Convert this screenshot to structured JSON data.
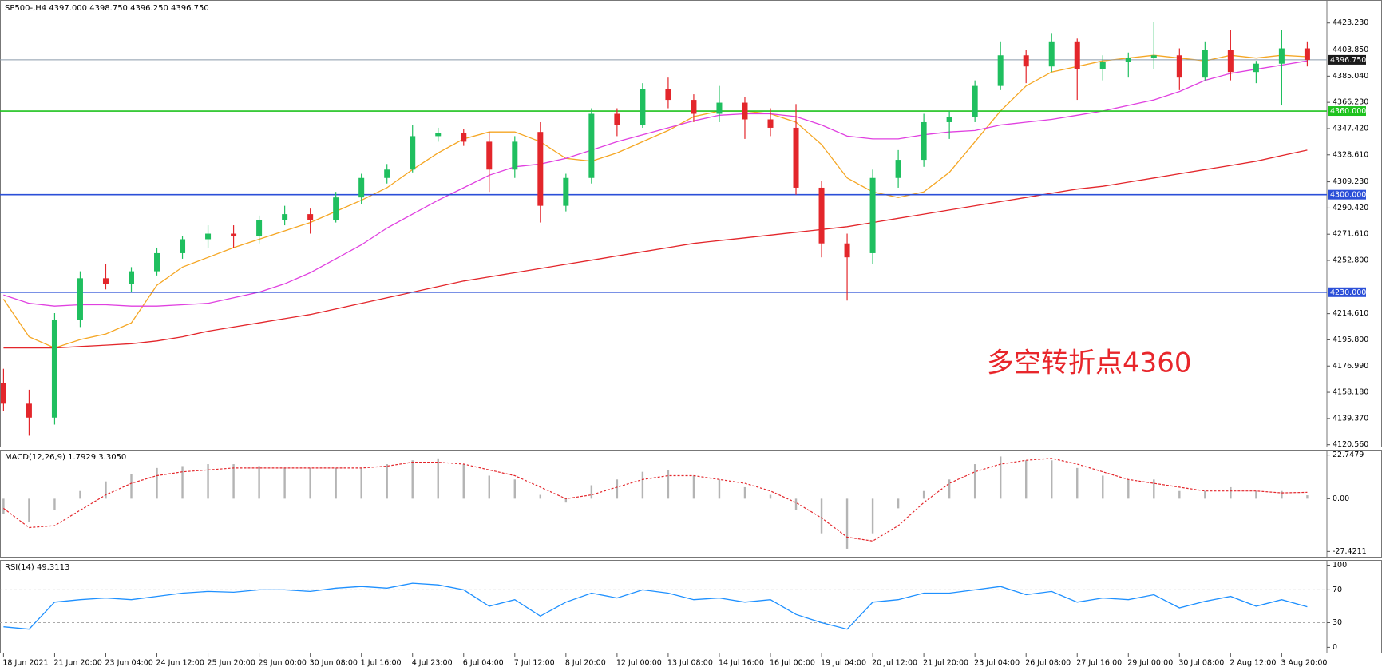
{
  "chart_data": [
    {
      "type": "candlestick",
      "title": "SP500-,H4  4397.000 4398.750 4396.250 4396.750",
      "categories": [
        "18 Jun 2021",
        null,
        "21 Jun 20:00",
        null,
        "23 Jun 04:00",
        null,
        "24 Jun 12:00",
        null,
        "25 Jun 20:00",
        null,
        "29 Jun 00:00",
        null,
        "30 Jun 08:00",
        null,
        "1 Jul 16:00",
        null,
        "4 Jul 23:00",
        null,
        "6 Jul 04:00",
        null,
        "7 Jul 12:00",
        null,
        "8 Jul 20:00",
        null,
        "12 Jul 00:00",
        null,
        "13 Jul 08:00",
        null,
        "14 Jul 16:00",
        null,
        "16 Jul 00:00",
        null,
        "19 Jul 04:00",
        null,
        "20 Jul 12:00",
        null,
        "21 Jul 20:00",
        null,
        "23 Jul 04:00",
        null,
        "26 Jul 08:00",
        null,
        "27 Jul 16:00",
        null,
        "29 Jul 00:00",
        null,
        "30 Jul 08:00",
        null,
        "2 Aug 12:00",
        null,
        "3 Aug 20:00",
        null
      ],
      "open": [
        4165,
        4150,
        4140,
        4210,
        4240,
        4236,
        4245,
        4258,
        4268,
        4272,
        4270,
        4282,
        4286,
        4282,
        4298,
        4312,
        4318,
        4342,
        4344,
        4338,
        4318,
        4345,
        4292,
        4312,
        4358,
        4350,
        4376,
        4368,
        4358,
        4366,
        4354,
        4348,
        4305,
        4265,
        4258,
        4312,
        4325,
        4352,
        4356,
        4378,
        4400,
        4392,
        4410,
        4390,
        4395,
        4398,
        4400,
        4384,
        4404,
        4388,
        4394,
        4405
      ],
      "high": [
        4175,
        4160,
        4215,
        4245,
        4250,
        4248,
        4262,
        4270,
        4278,
        4278,
        4285,
        4292,
        4290,
        4302,
        4315,
        4322,
        4350,
        4348,
        4347,
        4345,
        4342,
        4352,
        4315,
        4362,
        4362,
        4380,
        4384,
        4372,
        4378,
        4370,
        4362,
        4365,
        4310,
        4272,
        4318,
        4332,
        4358,
        4360,
        4382,
        4410,
        4404,
        4416,
        4412,
        4400,
        4402,
        4424,
        4405,
        4410,
        4418,
        4396,
        4418,
        4410
      ],
      "low": [
        4145,
        4127,
        4135,
        4205,
        4232,
        4230,
        4242,
        4254,
        4262,
        4262,
        4265,
        4278,
        4272,
        4280,
        4293,
        4308,
        4316,
        4338,
        4335,
        4302,
        4312,
        4280,
        4288,
        4308,
        4342,
        4348,
        4362,
        4352,
        4352,
        4340,
        4342,
        4300,
        4255,
        4224,
        4250,
        4305,
        4320,
        4340,
        4352,
        4375,
        4380,
        4388,
        4368,
        4382,
        4384,
        4390,
        4375,
        4382,
        4382,
        4380,
        4364,
        4392
      ],
      "close": [
        4150,
        4140,
        4210,
        4240,
        4236,
        4245,
        4258,
        4268,
        4272,
        4270,
        4282,
        4286,
        4282,
        4298,
        4312,
        4318,
        4342,
        4344,
        4338,
        4318,
        4338,
        4292,
        4312,
        4358,
        4350,
        4376,
        4368,
        4358,
        4366,
        4354,
        4348,
        4305,
        4265,
        4255,
        4312,
        4325,
        4352,
        4356,
        4378,
        4400,
        4392,
        4410,
        4390,
        4395,
        4398,
        4400,
        4384,
        4404,
        4388,
        4394,
        4405,
        4396.75
      ],
      "up_color": "#1fbf5f",
      "down_color": "#e3262b",
      "series": [
        {
          "color": "#f5a623",
          "values": [
            4225,
            4198,
            4190,
            4196,
            4200,
            4208,
            4235,
            4248,
            4255,
            4262,
            4268,
            4274,
            4280,
            4288,
            4296,
            4305,
            4318,
            4330,
            4340,
            4345,
            4345,
            4338,
            4326,
            4324,
            4330,
            4338,
            4346,
            4356,
            4360,
            4360,
            4358,
            4352,
            4336,
            4312,
            4302,
            4298,
            4302,
            4316,
            4338,
            4360,
            4378,
            4388,
            4392,
            4396,
            4398,
            4400,
            4398,
            4396,
            4400,
            4398,
            4400,
            4399
          ]
        },
        {
          "color": "#e040e0",
          "values": [
            4228,
            4222,
            4220,
            4221,
            4221,
            4220,
            4220,
            4221,
            4222,
            4226,
            4230,
            4236,
            4244,
            4254,
            4264,
            4276,
            4286,
            4296,
            4305,
            4314,
            4320,
            4322,
            4326,
            4332,
            4338,
            4343,
            4348,
            4353,
            4357,
            4358,
            4358,
            4356,
            4350,
            4342,
            4340,
            4340,
            4343,
            4345,
            4346,
            4350,
            4352,
            4354,
            4357,
            4360,
            4364,
            4368,
            4374,
            4382,
            4387,
            4390,
            4393,
            4396
          ]
        },
        {
          "color": "#e3262b",
          "values": [
            4190,
            4190,
            4190,
            4191,
            4192,
            4193,
            4195,
            4198,
            4202,
            4205,
            4208,
            4211,
            4214,
            4218,
            4222,
            4226,
            4230,
            4234,
            4238,
            4241,
            4244,
            4247,
            4250,
            4253,
            4256,
            4259,
            4262,
            4265,
            4267,
            4269,
            4271,
            4273,
            4275,
            4277,
            4280,
            4283,
            4286,
            4289,
            4292,
            4295,
            4298,
            4301,
            4304,
            4306,
            4309,
            4312,
            4315,
            4318,
            4321,
            4324,
            4328,
            4332
          ]
        }
      ],
      "hlines": [
        {
          "value": 4396.75,
          "label": "4396.750",
          "color": "#8a9aaa"
        },
        {
          "value": 4360,
          "label": "4360.000",
          "color": "#1ec21e"
        },
        {
          "value": 4300,
          "label": "4300.000",
          "color": "#2b4fd8"
        },
        {
          "value": 4230,
          "label": "4230.000",
          "color": "#2b4fd8"
        }
      ],
      "annotation": "多空转折点4360",
      "ylim": [
        4118.66,
        4439.7
      ],
      "yticks": [
        {
          "value": 4423.23,
          "label": "4423.230"
        },
        {
          "value": 4403.85,
          "label": "4403.850"
        },
        {
          "value": 4385.04,
          "label": "4385.040"
        },
        {
          "value": 4366.23,
          "label": "4366.230"
        },
        {
          "value": 4347.42,
          "label": "4347.420"
        },
        {
          "value": 4328.61,
          "label": "4328.610"
        },
        {
          "value": 4309.23,
          "label": "4309.230"
        },
        {
          "value": 4290.42,
          "label": "4290.420"
        },
        {
          "value": 4271.61,
          "label": "4271.610"
        },
        {
          "value": 4252.8,
          "label": "4252.800"
        },
        {
          "value": 4214.61,
          "label": "4214.610"
        },
        {
          "value": 4195.8,
          "label": "4195.800"
        },
        {
          "value": 4176.99,
          "label": "4176.990"
        },
        {
          "value": 4158.18,
          "label": "4158.180"
        },
        {
          "value": 4139.37,
          "label": "4139.370"
        },
        {
          "value": 4120.56,
          "label": "4120.560"
        }
      ]
    },
    {
      "type": "macd",
      "title": "MACD(12,26,9) 1.7929 3.3050",
      "values": [
        -8,
        -12,
        -6,
        4,
        9,
        13,
        16,
        17,
        18,
        18,
        17,
        16,
        16,
        16,
        16,
        18,
        20,
        21,
        18,
        12,
        10,
        2,
        -2,
        7,
        10,
        14,
        15,
        12,
        10,
        6,
        2,
        -6,
        -18,
        -26,
        -18,
        -5,
        4,
        10,
        18,
        22,
        20,
        20,
        16,
        12,
        10,
        10,
        4,
        4,
        6,
        4,
        4,
        1.7929
      ],
      "color": "#b4b4b4",
      "signal": {
        "color": "#e3262b",
        "values": [
          -5,
          -15,
          -14,
          -6,
          2,
          8,
          12,
          14,
          15,
          16,
          16,
          16,
          16,
          16,
          16,
          17,
          19,
          19,
          18,
          15,
          12,
          6,
          0,
          2,
          6,
          10,
          12,
          12,
          10,
          8,
          4,
          -2,
          -10,
          -20,
          -22,
          -14,
          -2,
          8,
          14,
          18,
          20,
          21,
          18,
          14,
          10,
          8,
          6,
          4,
          4,
          4,
          3,
          3.305
        ]
      },
      "ylim": [
        -30.6,
        25.5
      ],
      "yticks": [
        22.7479,
        {
          "value": 0,
          "label": "0.00"
        },
        -27.4211
      ]
    },
    {
      "type": "line",
      "title": "RSI(14) 49.3113",
      "values": [
        25,
        22,
        55,
        58,
        60,
        58,
        62,
        66,
        68,
        67,
        70,
        70,
        68,
        72,
        74,
        72,
        78,
        76,
        70,
        50,
        58,
        38,
        55,
        66,
        60,
        70,
        66,
        58,
        60,
        55,
        58,
        40,
        30,
        22,
        55,
        58,
        66,
        66,
        70,
        74,
        64,
        68,
        55,
        60,
        58,
        64,
        48,
        56,
        62,
        50,
        58,
        49.3113
      ],
      "color": "#1e90ff",
      "ylim": [
        -7.4,
        106.3
      ],
      "yticks": [
        100,
        70,
        30,
        0
      ],
      "levels": [
        70,
        30
      ]
    }
  ]
}
